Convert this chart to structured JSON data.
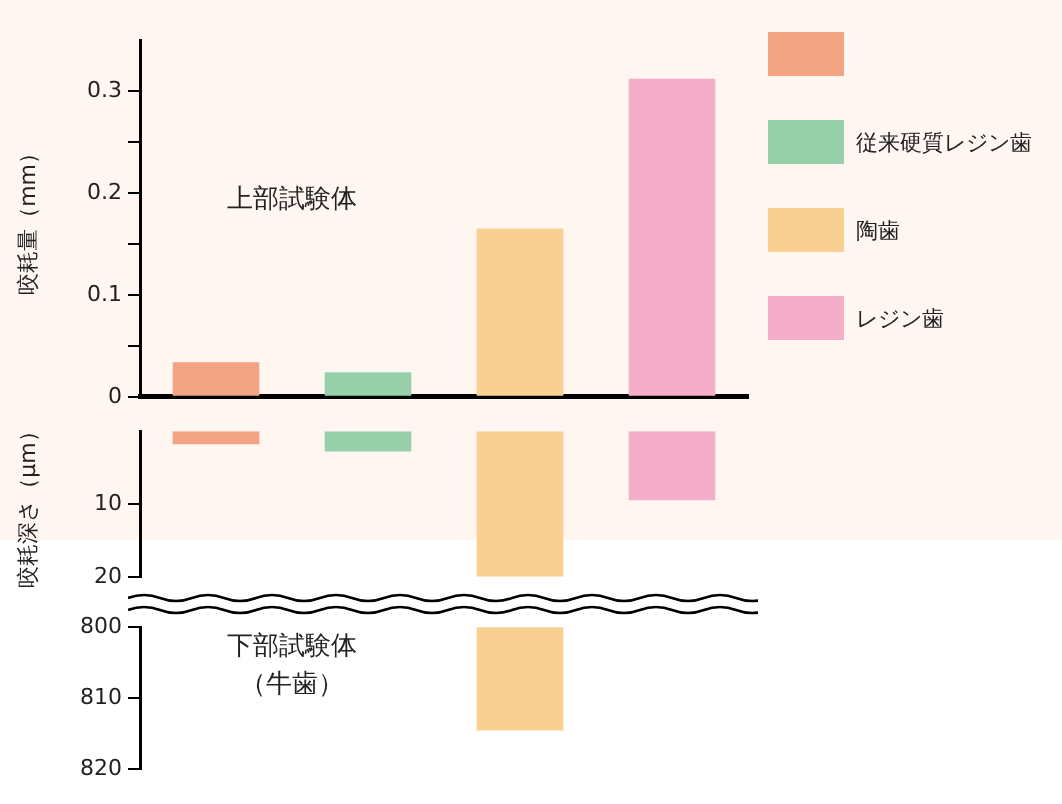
{
  "chart_data": [
    {
      "type": "bar",
      "ylabel": "咬耗量（mm）",
      "annotations": [
        "上部試験体"
      ],
      "categories": [
        null,
        null,
        null,
        null
      ],
      "series": [
        {
          "color": "#f3a483",
          "values": [
            0.034,
            null,
            null,
            null
          ]
        },
        {
          "name": "従来硬質レジン歯",
          "color": "#95d0a8",
          "values": [
            null,
            0.024,
            null,
            null
          ]
        },
        {
          "name": "陶歯",
          "color": "#f8d192",
          "values": [
            null,
            null,
            0.165,
            null
          ]
        },
        {
          "name": "レジン歯",
          "color": "#f4aeca",
          "values": [
            null,
            null,
            null,
            0.312
          ]
        }
      ],
      "ylim": [
        0,
        0.35
      ],
      "yticks": [
        0,
        {
          "value": 0.05,
          "label": null
        },
        0.1,
        {
          "value": 0.15,
          "label": null
        },
        0.2,
        {
          "value": 0.25,
          "label": null
        },
        0.3
      ],
      "legend": "right",
      "tick_labels": "y"
    },
    {
      "type": "bar",
      "ylabel": "咬耗深さ（μm）",
      "categories": [
        null,
        null,
        null,
        null
      ],
      "series": [
        {
          "color": "#f3a483",
          "values": [
            1.8,
            null,
            null,
            null
          ]
        },
        {
          "color": "#95d0a8",
          "values": [
            null,
            2.8,
            null,
            null
          ]
        },
        {
          "color": "#f8d192",
          "values": [
            null,
            null,
            20,
            null
          ]
        },
        {
          "color": "#f4aeca",
          "values": [
            null,
            null,
            null,
            9.5
          ]
        }
      ],
      "ylim": [
        20,
        0
      ],
      "yticks": [
        10,
        20
      ],
      "tick_labels": "y"
    },
    {
      "type": "bar",
      "annotations": [
        "下部試験体",
        "（牛歯）"
      ],
      "categories": [
        null,
        null,
        null,
        null
      ],
      "series": [
        {
          "color": "#f8d192",
          "values": [
            null,
            null,
            814.6,
            null
          ]
        }
      ],
      "ylim": [
        820,
        800
      ],
      "yticks": [
        800,
        810,
        820
      ],
      "tick_labels": "y"
    }
  ]
}
